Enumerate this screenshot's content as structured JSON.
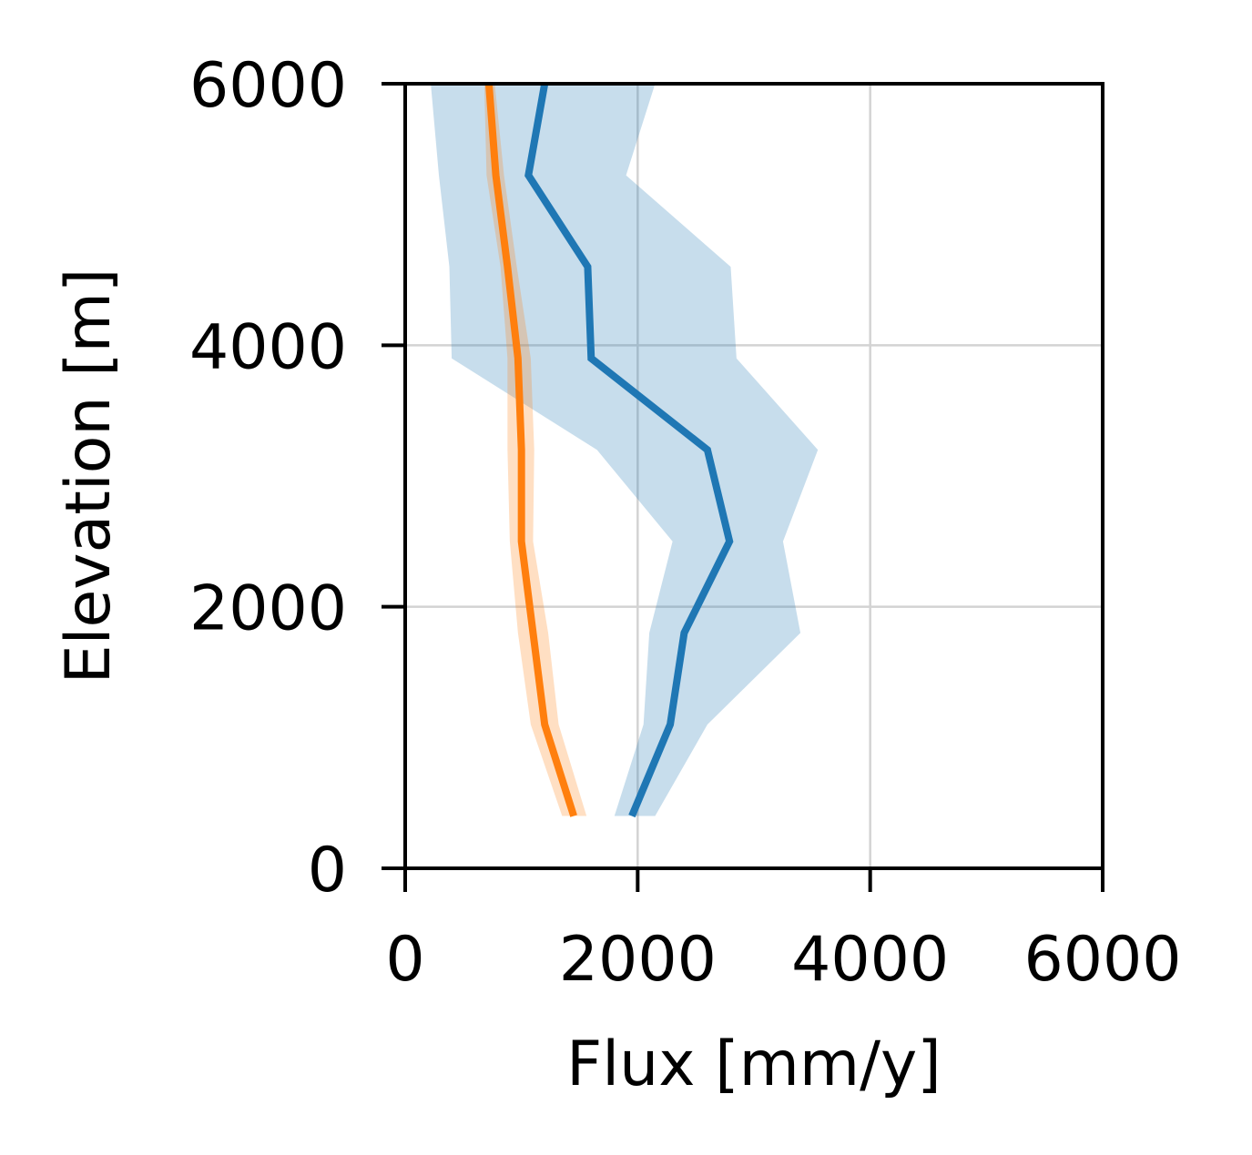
{
  "chart_data": {
    "type": "line",
    "title": "",
    "xlabel": "Flux [mm/y]",
    "ylabel": "Elevation [m]",
    "xlim": [
      0,
      6000
    ],
    "ylim": [
      0,
      6000
    ],
    "xticks": [
      0,
      2000,
      4000,
      6000
    ],
    "yticks": [
      0,
      2000,
      4000,
      6000
    ],
    "xtick_labels": [
      "0",
      "2000",
      "4000",
      "6000"
    ],
    "ytick_labels": [
      "0",
      "2000",
      "4000",
      "6000"
    ],
    "grid": true,
    "legend": "none",
    "series": [
      {
        "color": "#1f77b4",
        "y": [
          400,
          1100,
          1800,
          2500,
          3200,
          3900,
          4600,
          5300,
          6000
        ],
        "x": [
          1950,
          2280,
          2400,
          2790,
          2600,
          1600,
          1570,
          1060,
          1200
        ],
        "x_low": [
          1800,
          2050,
          2100,
          2300,
          1650,
          400,
          380,
          290,
          220
        ],
        "x_high": [
          2150,
          2600,
          3400,
          3250,
          3550,
          2850,
          2800,
          1900,
          2150
        ]
      },
      {
        "color": "#ff7f0e",
        "y": [
          400,
          1100,
          1800,
          2500,
          3200,
          3900,
          4600,
          5300,
          6000
        ],
        "x": [
          1450,
          1200,
          1100,
          1000,
          1000,
          970,
          880,
          780,
          720
        ],
        "x_low": [
          1350,
          1080,
          970,
          900,
          880,
          880,
          820,
          700,
          680
        ],
        "x_high": [
          1560,
          1320,
          1230,
          1100,
          1110,
          1080,
          960,
          850,
          770
        ]
      }
    ]
  }
}
